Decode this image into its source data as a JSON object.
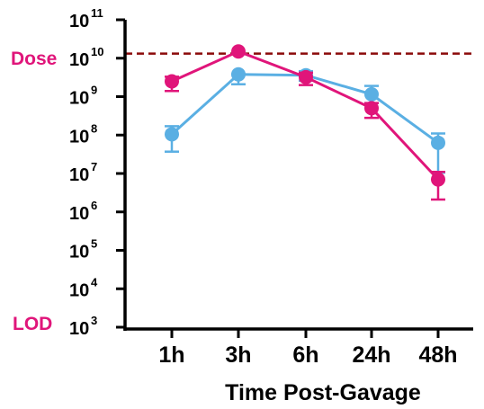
{
  "chart_data": {
    "type": "line",
    "xlabel": "Time Post-Gavage",
    "ylabel": "",
    "y_scale": "log10",
    "ylim_exponents": [
      3,
      11
    ],
    "categories": [
      "1h",
      "3h",
      "6h",
      "24h",
      "48h"
    ],
    "y_ticks": [
      {
        "base": "10",
        "exp": "3"
      },
      {
        "base": "10",
        "exp": "4"
      },
      {
        "base": "10",
        "exp": "5"
      },
      {
        "base": "10",
        "exp": "6"
      },
      {
        "base": "10",
        "exp": "7"
      },
      {
        "base": "10",
        "exp": "8"
      },
      {
        "base": "10",
        "exp": "9"
      },
      {
        "base": "10",
        "exp": "10"
      },
      {
        "base": "10",
        "exp": "11"
      }
    ],
    "series": [
      {
        "color": "#e0157a",
        "values": [
          2500000000.0,
          15000000000.0,
          3200000000.0,
          500000000.0,
          7000000.0
        ],
        "err_low": [
          1400000000.0,
          15000000000.0,
          2000000000.0,
          280000000.0,
          2100000.0
        ],
        "err_high": [
          3300000000.0,
          15000000000.0,
          4200000000.0,
          680000000.0,
          11000000.0
        ]
      },
      {
        "color": "#5aafe3",
        "values": [
          105000000.0,
          3800000000.0,
          3600000000.0,
          1150000000.0,
          63000000.0
        ],
        "err_low": [
          37000000.0,
          2100000000.0,
          2600000000.0,
          680000000.0,
          10500000.0
        ],
        "err_high": [
          170000000.0,
          3800000000.0,
          4600000000.0,
          1900000000.0,
          110000000.0
        ]
      }
    ],
    "reference_lines": [
      {
        "label": "Dose",
        "value": 13200000000.0,
        "color": "#8b0a0a",
        "style": "dashed"
      }
    ],
    "annotations": [
      {
        "label": "LOD",
        "value": 1000.0,
        "color": "#e0157a"
      },
      {
        "label": "Dose",
        "color": "#e0157a"
      }
    ],
    "grid": false,
    "legend": "none"
  }
}
